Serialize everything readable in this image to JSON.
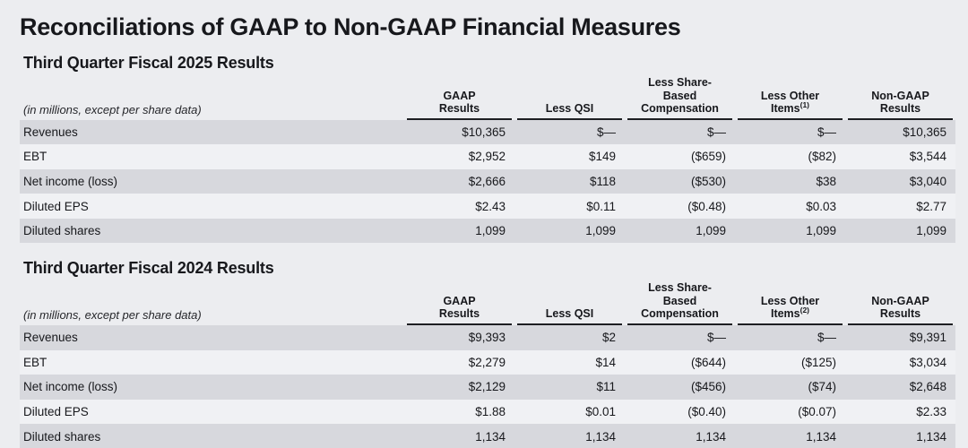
{
  "page": {
    "title": "Reconciliations of GAAP to Non-GAAP Financial Measures"
  },
  "colors": {
    "page_bg": "#ecedf0",
    "row_odd": "#d7d8dd",
    "row_even": "#f0f1f4",
    "rule": "#1d1e22",
    "text": "#17181c"
  },
  "tables": [
    {
      "section_title": "Third Quarter Fiscal 2025 Results",
      "note": "(in millions, except per share data)",
      "columns": [
        {
          "lines": [
            "GAAP",
            "Results"
          ],
          "superscript": ""
        },
        {
          "lines": [
            "Less QSI"
          ],
          "superscript": ""
        },
        {
          "lines": [
            "Less Share-",
            "Based",
            "Compensation"
          ],
          "superscript": ""
        },
        {
          "lines": [
            "Less Other",
            "Items"
          ],
          "superscript": "(1)"
        },
        {
          "lines": [
            "Non-GAAP",
            "Results"
          ],
          "superscript": ""
        }
      ],
      "rows": [
        {
          "label": "Revenues",
          "values": [
            "$10,365",
            "$—",
            "$—",
            "$—",
            "$10,365"
          ]
        },
        {
          "label": "EBT",
          "values": [
            "$2,952",
            "$149",
            "($659)",
            "($82)",
            "$3,544"
          ]
        },
        {
          "label": "Net income (loss)",
          "values": [
            "$2,666",
            "$118",
            "($530)",
            "$38",
            "$3,040"
          ]
        },
        {
          "label": "Diluted EPS",
          "values": [
            "$2.43",
            "$0.11",
            "($0.48)",
            "$0.03",
            "$2.77"
          ]
        },
        {
          "label": "Diluted shares",
          "values": [
            "1,099",
            "1,099",
            "1,099",
            "1,099",
            "1,099"
          ]
        }
      ]
    },
    {
      "section_title": "Third Quarter Fiscal 2024 Results",
      "note": "(in millions, except per share data)",
      "columns": [
        {
          "lines": [
            "GAAP",
            "Results"
          ],
          "superscript": ""
        },
        {
          "lines": [
            "Less QSI"
          ],
          "superscript": ""
        },
        {
          "lines": [
            "Less Share-",
            "Based",
            "Compensation"
          ],
          "superscript": ""
        },
        {
          "lines": [
            "Less Other",
            "Items"
          ],
          "superscript": "(2)"
        },
        {
          "lines": [
            "Non-GAAP",
            "Results"
          ],
          "superscript": ""
        }
      ],
      "rows": [
        {
          "label": "Revenues",
          "values": [
            "$9,393",
            "$2",
            "$—",
            "$—",
            "$9,391"
          ]
        },
        {
          "label": "EBT",
          "values": [
            "$2,279",
            "$14",
            "($644)",
            "($125)",
            "$3,034"
          ]
        },
        {
          "label": "Net income (loss)",
          "values": [
            "$2,129",
            "$11",
            "($456)",
            "($74)",
            "$2,648"
          ]
        },
        {
          "label": "Diluted EPS",
          "values": [
            "$1.88",
            "$0.01",
            "($0.40)",
            "($0.07)",
            "$2.33"
          ]
        },
        {
          "label": "Diluted shares",
          "values": [
            "1,134",
            "1,134",
            "1,134",
            "1,134",
            "1,134"
          ]
        }
      ]
    }
  ]
}
